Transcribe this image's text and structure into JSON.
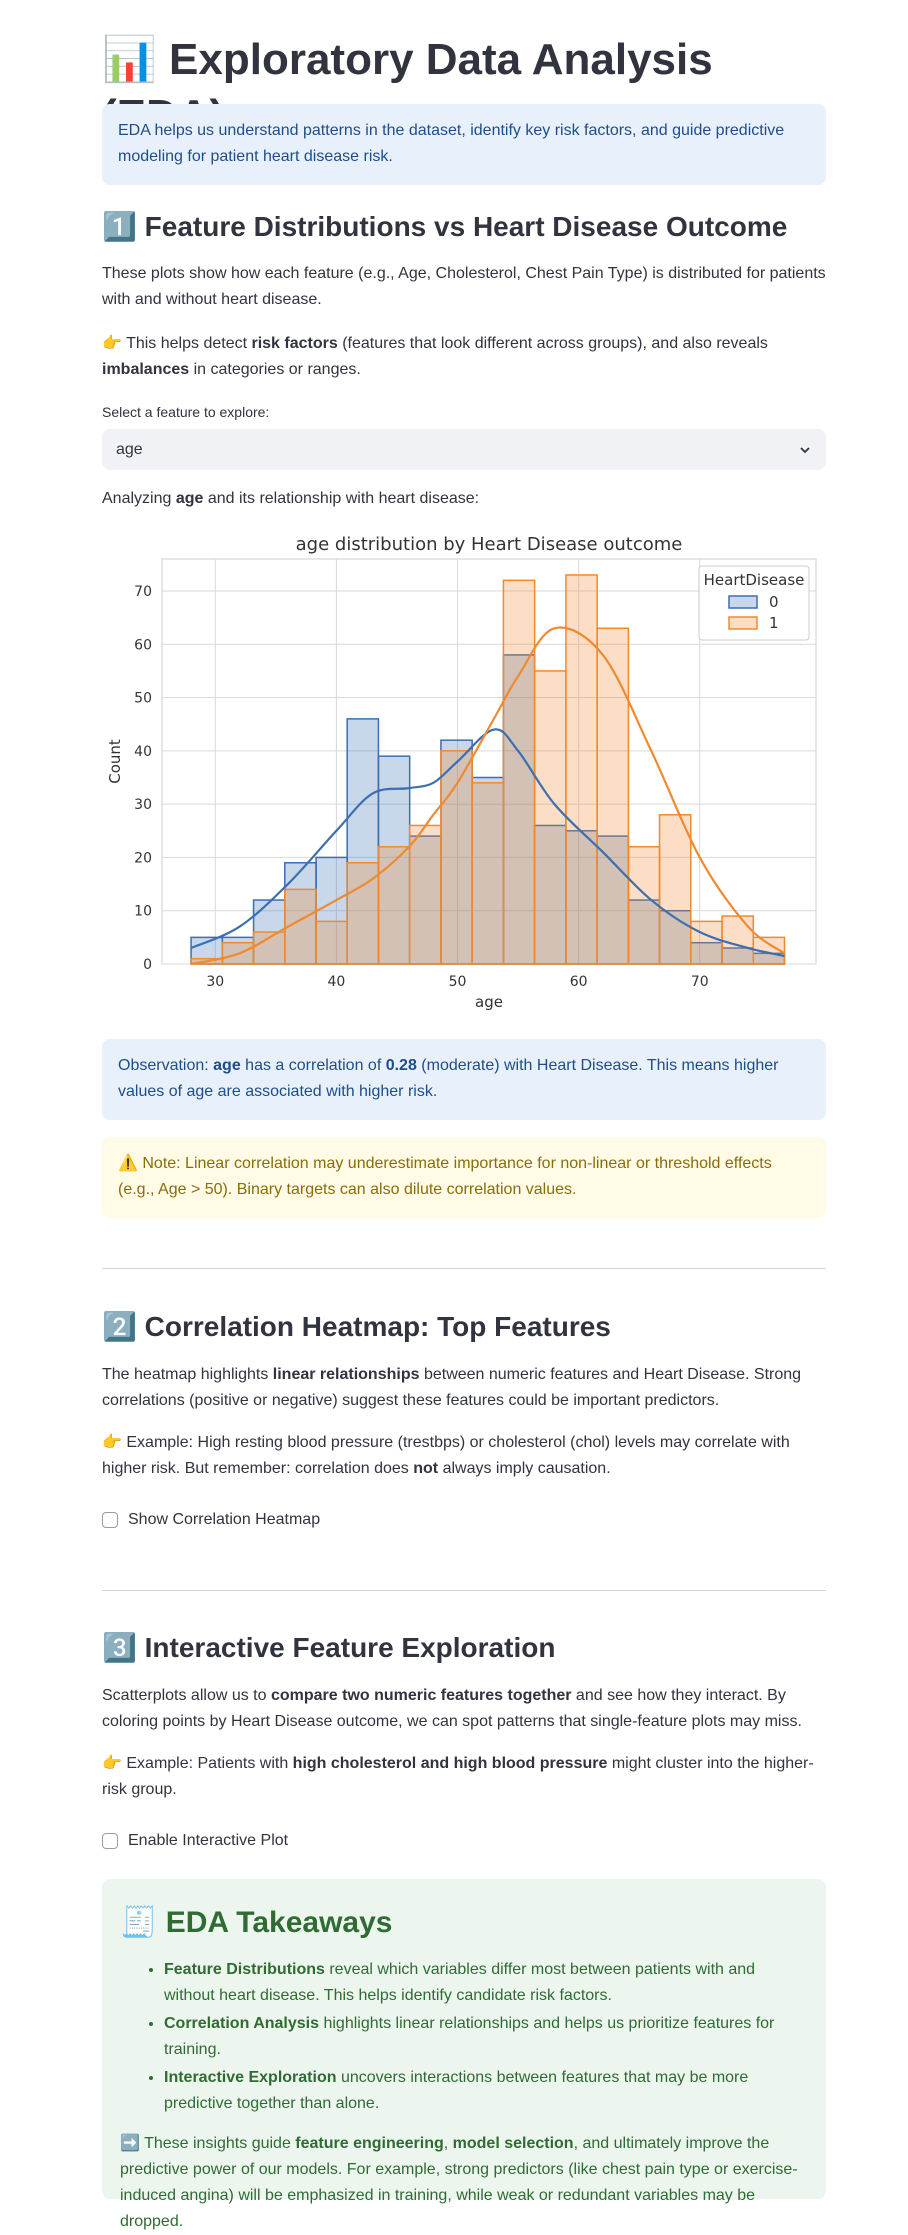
{
  "header": {
    "icon": "📊",
    "title": "Exploratory Data Analysis (EDA)"
  },
  "intro": "EDA helps us understand patterns in the dataset, identify key risk factors, and guide predictive modeling for patient heart disease risk.",
  "sections": [
    {
      "icon": "1️⃣",
      "title": "Feature Distributions vs Heart Disease Outcome",
      "paragraphs": [
        [
          "These plots show how each feature (e.g., Age, Cholesterol, Chest Pain Type) is distributed for patients with and without heart disease."
        ],
        [
          "👉 This helps detect ",
          {
            "b": "risk factors"
          },
          " (features that look different across groups), and also reveals ",
          {
            "b": "imbalances"
          },
          " in categories or ranges."
        ]
      ],
      "select": {
        "label": "Select a feature to explore:",
        "value": "age"
      },
      "analyzing": [
        "Analyzing ",
        {
          "b": "age"
        },
        " and its relationship with heart disease:"
      ],
      "observation": [
        "Observation: ",
        {
          "b": "age"
        },
        " has a correlation of ",
        {
          "b": "0.28"
        },
        " (moderate) with Heart Disease. This means higher values of age are associated with higher risk."
      ],
      "note": [
        "⚠️ Note: Linear correlation may underestimate importance for non-linear or threshold effects (e.g., Age > 50). Binary targets can also dilute correlation values."
      ]
    },
    {
      "icon": "2️⃣",
      "title": "Correlation Heatmap: Top Features",
      "paragraphs": [
        [
          "The heatmap highlights ",
          {
            "b": "linear relationships"
          },
          " between numeric features and Heart Disease. Strong correlations (positive or negative) suggest these features could be important predictors."
        ],
        [
          "👉 Example: High resting blood pressure (trestbps) or cholesterol (chol) levels may correlate with higher risk. But remember: correlation does ",
          {
            "b": "not"
          },
          " always imply causation."
        ]
      ],
      "checkbox": "Show Correlation Heatmap"
    },
    {
      "icon": "3️⃣",
      "title": "Interactive Feature Exploration",
      "paragraphs": [
        [
          "Scatterplots allow us to ",
          {
            "b": "compare two numeric features together"
          },
          " and see how they interact. By coloring points by Heart Disease outcome, we can spot patterns that single-feature plots may miss."
        ],
        [
          "👉 Example: Patients with ",
          {
            "b": "high cholesterol and high blood pressure"
          },
          " might cluster into the higher-risk group."
        ]
      ],
      "checkbox": "Enable Interactive Plot"
    }
  ],
  "takeaways": {
    "icon": "🧾",
    "title": "EDA Takeaways",
    "items": [
      [
        {
          "b": "Feature Distributions"
        },
        " reveal which variables differ most between patients with and without heart disease. This helps identify candidate risk factors."
      ],
      [
        {
          "b": "Correlation Analysis"
        },
        " highlights linear relationships and helps us prioritize features for training."
      ],
      [
        {
          "b": "Interactive Exploration"
        },
        " uncovers interactions between features that may be more predictive together than alone."
      ]
    ],
    "closing": [
      "➡️ These insights guide ",
      {
        "b": "feature engineering"
      },
      ", ",
      {
        "b": "model selection"
      },
      ", and ultimately improve the predictive power of our models. For example, strong predictors (like chest pain type or exercise-induced angina) will be emphasized in training, while weak or redundant variables may be dropped."
    ]
  },
  "chart_data": {
    "type": "histogram",
    "title": "age distribution by Heart Disease outcome",
    "x_label": "age",
    "y_label": "Count",
    "bins": [
      28,
      30.58,
      33.16,
      35.74,
      38.32,
      40.89,
      43.47,
      46.05,
      48.63,
      51.21,
      53.79,
      56.37,
      58.95,
      61.53,
      64.11,
      66.68,
      69.26,
      71.84,
      74.42,
      77
    ],
    "kde_x": [
      28,
      32,
      36,
      40,
      43,
      46,
      48,
      50,
      53,
      55,
      58,
      62,
      66,
      70,
      74,
      77
    ],
    "series": [
      {
        "name": "0",
        "color": "#3b6fb0",
        "values": [
          5,
          5,
          12,
          19,
          20,
          46,
          39,
          24,
          42,
          35,
          58,
          26,
          25,
          24,
          12,
          10,
          4,
          3,
          2
        ],
        "kde": [
          3,
          7,
          15,
          25,
          32,
          33,
          34,
          38,
          44,
          40,
          30,
          21,
          12,
          6,
          3,
          1.5
        ]
      },
      {
        "name": "1",
        "color": "#ef8a2f",
        "values": [
          1,
          4,
          6,
          14,
          8,
          19,
          22,
          26,
          40,
          34,
          72,
          55,
          73,
          63,
          22,
          28,
          8,
          9,
          5
        ],
        "kde": [
          0,
          2,
          7,
          12,
          16,
          22,
          28,
          34,
          46,
          54,
          63,
          58,
          40,
          20,
          7,
          2
        ]
      }
    ],
    "legend_title": "HeartDisease",
    "legend": "upper right",
    "xlim": [
      25.6,
      79.6
    ],
    "ylim": [
      0,
      76
    ],
    "xticks": [
      30,
      40,
      50,
      60,
      70
    ],
    "yticks": [
      0,
      10,
      20,
      30,
      40,
      50,
      60,
      70
    ],
    "grid": true
  }
}
